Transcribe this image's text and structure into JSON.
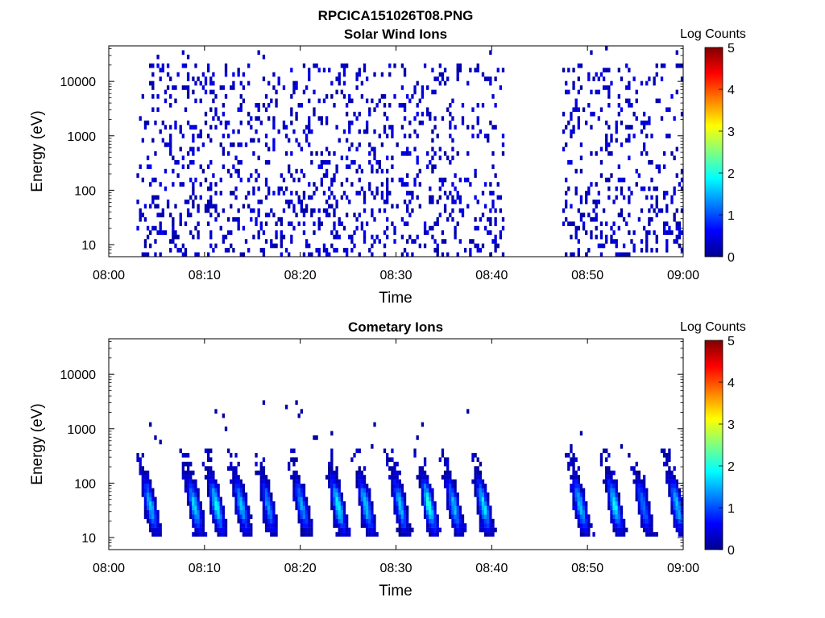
{
  "figure": {
    "title": "RPCICA151026T08.PNG"
  },
  "chart_data": [
    {
      "type": "heatmap",
      "title": "Solar Wind Ions",
      "xlabel": "Time",
      "ylabel": "Energy (eV)",
      "x_ticks": [
        "08:00",
        "08:10",
        "08:20",
        "08:30",
        "08:40",
        "08:50",
        "09:00"
      ],
      "x_range_minutes": [
        0,
        60
      ],
      "y_scale": "log",
      "y_ticks": [
        "10",
        "100",
        "1000",
        "10000"
      ],
      "y_range": [
        6,
        45000
      ],
      "colorbar": {
        "label": "Log Counts",
        "range": [
          0,
          5
        ],
        "ticks": [
          "0",
          "1",
          "2",
          "3",
          "4",
          "5"
        ],
        "colormap": "jet"
      },
      "data_gaps_minutes": [
        [
          41.3,
          47.5
        ]
      ],
      "pattern": "sparse_scatter",
      "data_description_counts": "mostly log counts 0-0.5 (dark blue) scattered across 10 eV - 20 keV"
    },
    {
      "type": "heatmap",
      "title": "Cometary Ions",
      "xlabel": "Time",
      "ylabel": "Energy (eV)",
      "x_ticks": [
        "08:00",
        "08:10",
        "08:20",
        "08:30",
        "08:40",
        "08:50",
        "09:00"
      ],
      "x_range_minutes": [
        0,
        60
      ],
      "y_scale": "log",
      "y_ticks": [
        "10",
        "100",
        "1000",
        "10000"
      ],
      "y_range": [
        6,
        45000
      ],
      "colorbar": {
        "label": "Log Counts",
        "range": [
          0,
          5
        ],
        "ticks": [
          "0",
          "1",
          "2",
          "3",
          "4",
          "5"
        ],
        "colormap": "jet"
      },
      "data_gaps_minutes": [
        [
          41.3,
          47.5
        ]
      ],
      "pattern": "periodic_dispersed_bursts",
      "bursts": [
        {
          "t": 3.3,
          "peak": 1.6
        },
        {
          "t": 7.9,
          "peak": 1.7
        },
        {
          "t": 10.2,
          "peak": 1.9
        },
        {
          "t": 12.8,
          "peak": 1.6
        },
        {
          "t": 15.6,
          "peak": 1.4
        },
        {
          "t": 19.1,
          "peak": 1.4
        },
        {
          "t": 22.9,
          "peak": 1.9
        },
        {
          "t": 25.8,
          "peak": 1.7
        },
        {
          "t": 29.4,
          "peak": 1.6
        },
        {
          "t": 32.4,
          "peak": 2.1
        },
        {
          "t": 35.0,
          "peak": 1.6
        },
        {
          "t": 38.1,
          "peak": 1.8
        },
        {
          "t": 48.2,
          "peak": 1.6
        },
        {
          "t": 51.8,
          "peak": 1.9
        },
        {
          "t": 54.8,
          "peak": 1.3
        },
        {
          "t": 58.3,
          "peak": 1.6
        }
      ]
    }
  ]
}
